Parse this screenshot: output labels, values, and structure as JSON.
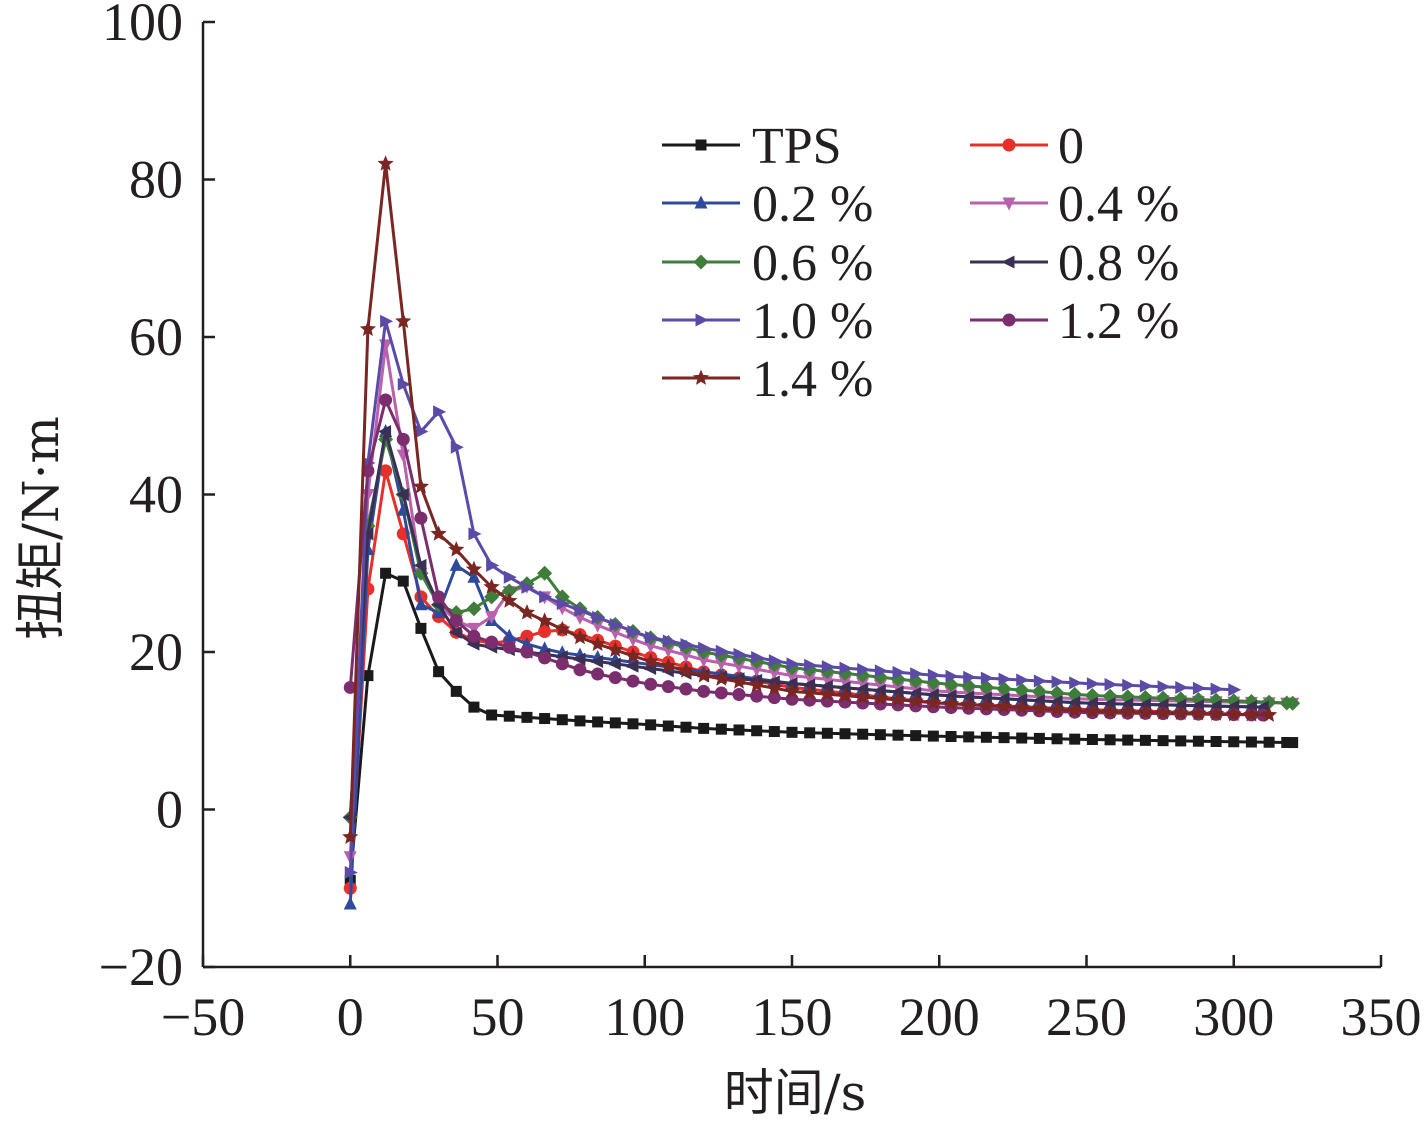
{
  "chart_data": {
    "type": "line",
    "xlabel": "时间/s",
    "ylabel": "扭矩/N·m",
    "xlim": [
      -50,
      350
    ],
    "ylim": [
      -20,
      100
    ],
    "xticks": [
      "−50",
      "0",
      "50",
      "100",
      "150",
      "200",
      "250",
      "300",
      "350"
    ],
    "yticks": [
      "−20",
      "0",
      "20",
      "40",
      "60",
      "80",
      "100"
    ],
    "grid": false,
    "legend_position": "top-right",
    "series": [
      {
        "name": "TPS",
        "color": "#1a1a1a",
        "marker": "square",
        "end": 320,
        "points": [
          [
            0,
            -9
          ],
          [
            6,
            17
          ],
          [
            12,
            30
          ],
          [
            18,
            29
          ],
          [
            24,
            23
          ],
          [
            30,
            17.5
          ],
          [
            36,
            15
          ],
          [
            42,
            13
          ],
          [
            48,
            12
          ],
          [
            60,
            11.7
          ],
          [
            80,
            11.2
          ],
          [
            100,
            10.8
          ],
          [
            120,
            10.3
          ],
          [
            150,
            9.8
          ],
          [
            200,
            9.3
          ],
          [
            250,
            8.9
          ],
          [
            300,
            8.6
          ],
          [
            320,
            8.5
          ]
        ]
      },
      {
        "name": "0",
        "color": "#e8302a",
        "marker": "circle",
        "end": 310,
        "points": [
          [
            0,
            -10
          ],
          [
            6,
            28
          ],
          [
            12,
            43
          ],
          [
            18,
            35
          ],
          [
            24,
            27
          ],
          [
            30,
            24.5
          ],
          [
            36,
            22.5
          ],
          [
            42,
            21.5
          ],
          [
            50,
            21
          ],
          [
            60,
            22
          ],
          [
            70,
            23
          ],
          [
            80,
            22
          ],
          [
            100,
            19.5
          ],
          [
            120,
            17.5
          ],
          [
            150,
            15.5
          ],
          [
            200,
            13.5
          ],
          [
            250,
            12.7
          ],
          [
            310,
            12
          ]
        ]
      },
      {
        "name": "0.2 %",
        "color": "#2f4a9c",
        "marker": "triangle-up",
        "end": 310,
        "points": [
          [
            0,
            -12
          ],
          [
            6,
            33
          ],
          [
            12,
            48
          ],
          [
            18,
            38
          ],
          [
            24,
            26
          ],
          [
            30,
            25
          ],
          [
            36,
            31
          ],
          [
            42,
            29.5
          ],
          [
            48,
            24
          ],
          [
            54,
            22
          ],
          [
            60,
            21
          ],
          [
            70,
            20
          ],
          [
            80,
            19.5
          ],
          [
            100,
            18.5
          ],
          [
            120,
            17.5
          ],
          [
            150,
            16
          ],
          [
            200,
            14.5
          ],
          [
            250,
            13.5
          ],
          [
            310,
            13
          ]
        ]
      },
      {
        "name": "0.4 %",
        "color": "#b960ae",
        "marker": "triangle-down",
        "end": 320,
        "points": [
          [
            0,
            -6
          ],
          [
            6,
            40
          ],
          [
            12,
            59
          ],
          [
            18,
            45
          ],
          [
            24,
            30
          ],
          [
            30,
            26
          ],
          [
            36,
            24
          ],
          [
            42,
            23
          ],
          [
            50,
            25
          ],
          [
            56,
            29
          ],
          [
            62,
            28
          ],
          [
            70,
            26
          ],
          [
            80,
            24
          ],
          [
            100,
            21
          ],
          [
            120,
            19
          ],
          [
            150,
            17
          ],
          [
            200,
            15
          ],
          [
            250,
            14
          ],
          [
            320,
            13.5
          ]
        ]
      },
      {
        "name": "0.6 %",
        "color": "#3f7d3a",
        "marker": "diamond",
        "end": 320,
        "points": [
          [
            0,
            -1
          ],
          [
            6,
            36
          ],
          [
            12,
            47
          ],
          [
            18,
            40
          ],
          [
            24,
            30
          ],
          [
            30,
            26
          ],
          [
            36,
            25
          ],
          [
            42,
            25.5
          ],
          [
            48,
            27
          ],
          [
            56,
            28
          ],
          [
            62,
            29
          ],
          [
            66,
            30
          ],
          [
            72,
            27
          ],
          [
            80,
            25
          ],
          [
            100,
            22
          ],
          [
            120,
            20
          ],
          [
            150,
            18
          ],
          [
            200,
            16
          ],
          [
            250,
            14.5
          ],
          [
            300,
            13.8
          ],
          [
            320,
            13.5
          ]
        ]
      },
      {
        "name": "0.8 %",
        "color": "#3a2f55",
        "marker": "triangle-left",
        "end": 310,
        "points": [
          [
            0,
            -1
          ],
          [
            6,
            35
          ],
          [
            12,
            48
          ],
          [
            18,
            40
          ],
          [
            24,
            31
          ],
          [
            30,
            26
          ],
          [
            36,
            22.5
          ],
          [
            42,
            21
          ],
          [
            50,
            20.5
          ],
          [
            60,
            20
          ],
          [
            80,
            19
          ],
          [
            100,
            18
          ],
          [
            120,
            17
          ],
          [
            150,
            16
          ],
          [
            200,
            14.5
          ],
          [
            250,
            13.5
          ],
          [
            310,
            13
          ]
        ]
      },
      {
        "name": "1.0 %",
        "color": "#5b4aa6",
        "marker": "triangle-right",
        "end": 300,
        "points": [
          [
            0,
            -8
          ],
          [
            6,
            44
          ],
          [
            12,
            62
          ],
          [
            18,
            54
          ],
          [
            24,
            48
          ],
          [
            30,
            50.5
          ],
          [
            36,
            46
          ],
          [
            42,
            35
          ],
          [
            48,
            31
          ],
          [
            56,
            29
          ],
          [
            66,
            27
          ],
          [
            80,
            25
          ],
          [
            100,
            22
          ],
          [
            120,
            20.5
          ],
          [
            150,
            18.5
          ],
          [
            200,
            17
          ],
          [
            250,
            16
          ],
          [
            300,
            15.2
          ]
        ]
      },
      {
        "name": "1.2 %",
        "color": "#7b2d6e",
        "marker": "circle",
        "end": 310,
        "points": [
          [
            0,
            15.5
          ],
          [
            6,
            43
          ],
          [
            12,
            52
          ],
          [
            18,
            47
          ],
          [
            24,
            37
          ],
          [
            30,
            27
          ],
          [
            36,
            24
          ],
          [
            42,
            22
          ],
          [
            50,
            21
          ],
          [
            60,
            20
          ],
          [
            80,
            17.5
          ],
          [
            100,
            16
          ],
          [
            120,
            15
          ],
          [
            150,
            14
          ],
          [
            200,
            13
          ],
          [
            250,
            12.3
          ],
          [
            310,
            12
          ]
        ]
      },
      {
        "name": "1.4 %",
        "color": "#7a2622",
        "marker": "star",
        "end": 312,
        "points": [
          [
            0,
            -3.5
          ],
          [
            6,
            61
          ],
          [
            12,
            82
          ],
          [
            18,
            62
          ],
          [
            24,
            41
          ],
          [
            30,
            35
          ],
          [
            36,
            33
          ],
          [
            42,
            30.5
          ],
          [
            50,
            27.5
          ],
          [
            60,
            25
          ],
          [
            80,
            21.5
          ],
          [
            100,
            19
          ],
          [
            120,
            17
          ],
          [
            150,
            15
          ],
          [
            200,
            13.5
          ],
          [
            250,
            12.5
          ],
          [
            312,
            12
          ]
        ]
      }
    ]
  }
}
